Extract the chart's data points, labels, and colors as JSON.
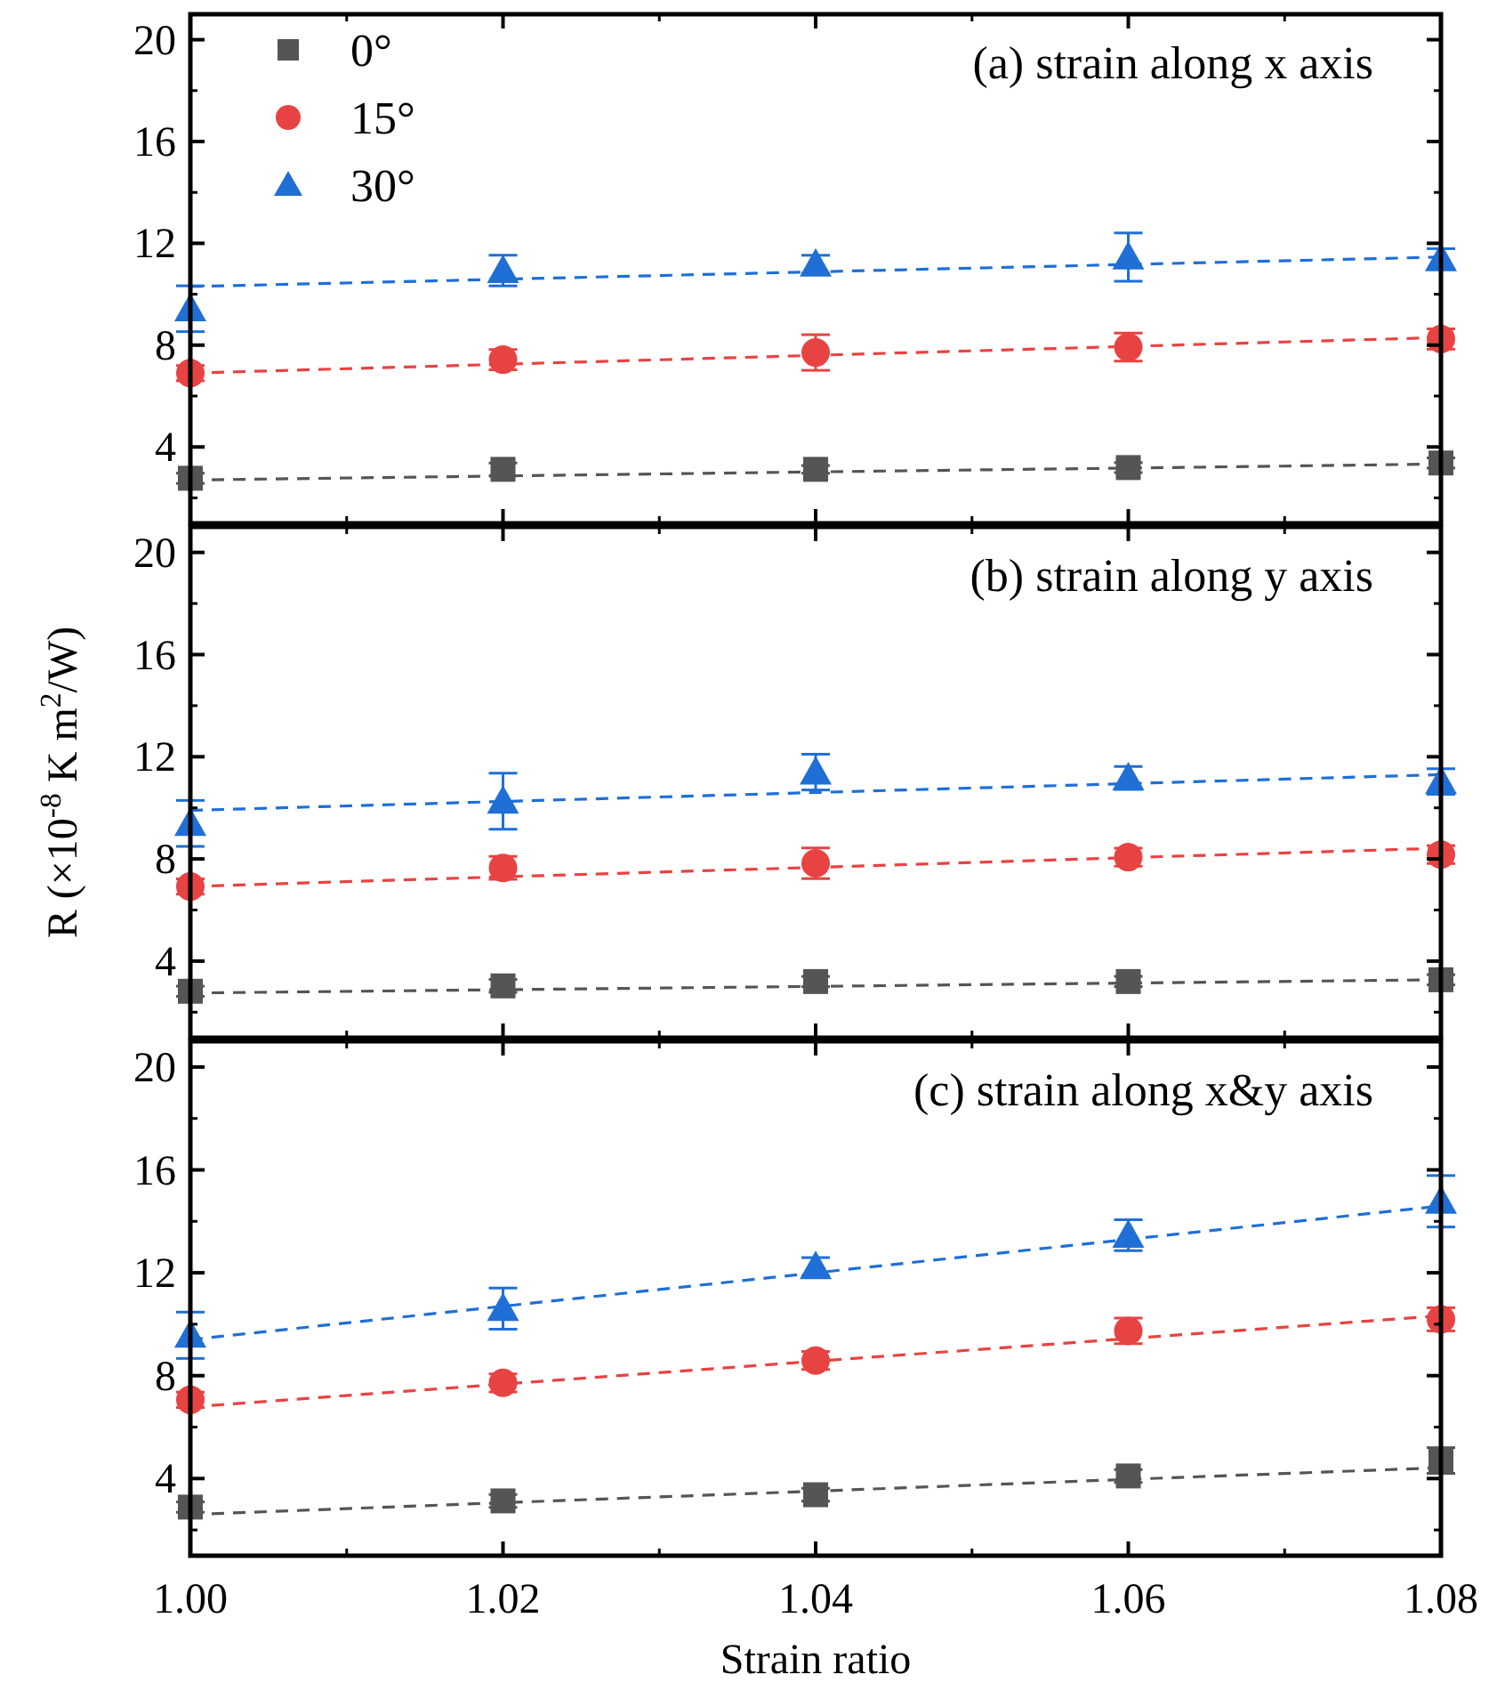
{
  "chart_data": [
    {
      "type": "scatter",
      "title": "(a) strain along x axis",
      "xlim": [
        1.0,
        1.08
      ],
      "xticks": [
        1.0,
        1.02,
        1.04,
        1.06,
        1.08
      ],
      "ylim": [
        1,
        21
      ],
      "yticks": [
        4,
        8,
        12,
        16,
        20
      ],
      "tick_labels": "y",
      "legend": "top left",
      "x": [
        1.0,
        1.02,
        1.04,
        1.06,
        1.08
      ],
      "series": [
        {
          "name": "0°",
          "color": "#555555",
          "marker": "square",
          "values": [
            2.77,
            3.12,
            3.12,
            3.19,
            3.37
          ],
          "errors": [
            0.2,
            0.25,
            0.15,
            0.2,
            0.2
          ]
        },
        {
          "name": "15°",
          "color": "#e84343",
          "marker": "circle",
          "values": [
            6.9,
            7.43,
            7.71,
            7.92,
            8.24
          ],
          "errors": [
            0.3,
            0.4,
            0.7,
            0.55,
            0.4
          ]
        },
        {
          "name": "30°",
          "color": "#1f6fd6",
          "marker": "triangle",
          "values": [
            9.43,
            10.93,
            11.18,
            11.46,
            11.39
          ],
          "errors": [
            0.9,
            0.6,
            0.35,
            0.95,
            0.4
          ]
        },
        {
          "type": "line",
          "color": "#555555",
          "line_style": "dashed",
          "values": [
            2.7,
            2.86,
            3.02,
            3.17,
            3.33
          ]
        },
        {
          "type": "line",
          "color": "#e84343",
          "line_style": "dashed",
          "values": [
            6.9,
            7.25,
            7.6,
            7.95,
            8.3
          ]
        },
        {
          "type": "line",
          "color": "#1f6fd6",
          "line_style": "dashed",
          "values": [
            10.3,
            10.59,
            10.88,
            11.17,
            11.46
          ]
        }
      ]
    },
    {
      "type": "scatter",
      "title": "(b) strain along y axis",
      "ylabel": "R (×10$^{-8}$ K m$^{2}$/W)",
      "xlim": [
        1.0,
        1.08
      ],
      "xticks": [
        1.0,
        1.02,
        1.04,
        1.06,
        1.08
      ],
      "ylim": [
        1,
        21
      ],
      "yticks": [
        4,
        8,
        12,
        16,
        20
      ],
      "tick_labels": "y",
      "x": [
        1.0,
        1.02,
        1.04,
        1.06,
        1.08
      ],
      "series": [
        {
          "color": "#555555",
          "marker": "square",
          "values": [
            2.82,
            3.03,
            3.2,
            3.2,
            3.27
          ],
          "errors": [
            0.2,
            0.25,
            0.2,
            0.2,
            0.2
          ]
        },
        {
          "color": "#e84343",
          "marker": "circle",
          "values": [
            6.92,
            7.65,
            7.83,
            8.07,
            8.17
          ],
          "errors": [
            0.3,
            0.45,
            0.6,
            0.35,
            0.35
          ]
        },
        {
          "color": "#1f6fd6",
          "marker": "triangle",
          "values": [
            9.39,
            10.26,
            11.4,
            11.17,
            11.03
          ],
          "errors": [
            0.9,
            1.1,
            0.7,
            0.45,
            0.5
          ]
        },
        {
          "type": "line",
          "color": "#555555",
          "line_style": "dashed",
          "values": [
            2.75,
            2.88,
            3.01,
            3.14,
            3.27
          ]
        },
        {
          "type": "line",
          "color": "#e84343",
          "line_style": "dashed",
          "values": [
            6.92,
            7.3,
            7.67,
            8.05,
            8.42
          ]
        },
        {
          "type": "line",
          "color": "#1f6fd6",
          "line_style": "dashed",
          "values": [
            9.9,
            10.25,
            10.6,
            10.95,
            11.3
          ]
        }
      ]
    },
    {
      "type": "scatter",
      "title": "(c) strain along x&y axis",
      "xlabel": "Strain ratio",
      "xlim": [
        1.0,
        1.08
      ],
      "xticks": [
        {
          "value": 1.0,
          "label": "1.00"
        },
        {
          "value": 1.02,
          "label": "1.02"
        },
        {
          "value": 1.04,
          "label": "1.04"
        },
        {
          "value": 1.06,
          "label": "1.06"
        },
        {
          "value": 1.08,
          "label": "1.08"
        }
      ],
      "ylim": [
        1,
        21
      ],
      "yticks": [
        4,
        8,
        12,
        16,
        20
      ],
      "x": [
        1.0,
        1.02,
        1.04,
        1.06,
        1.08
      ],
      "series": [
        {
          "color": "#555555",
          "marker": "square",
          "values": [
            2.89,
            3.13,
            3.37,
            4.1,
            4.7
          ],
          "errors": [
            0.2,
            0.25,
            0.25,
            0.25,
            0.5
          ]
        },
        {
          "color": "#e84343",
          "marker": "circle",
          "values": [
            7.06,
            7.72,
            8.59,
            9.74,
            10.19
          ],
          "errors": [
            0.3,
            0.35,
            0.35,
            0.5,
            0.45
          ]
        },
        {
          "color": "#1f6fd6",
          "marker": "triangle",
          "values": [
            9.57,
            10.61,
            12.24,
            13.46,
            14.78
          ],
          "errors": [
            0.9,
            0.8,
            0.35,
            0.6,
            1.0
          ]
        },
        {
          "type": "line",
          "color": "#555555",
          "line_style": "dashed",
          "values": [
            2.6,
            3.06,
            3.51,
            3.97,
            4.42
          ]
        },
        {
          "type": "line",
          "color": "#e84343",
          "line_style": "dashed",
          "values": [
            6.78,
            7.67,
            8.56,
            9.44,
            10.33
          ]
        },
        {
          "type": "line",
          "color": "#1f6fd6",
          "line_style": "dashed",
          "values": [
            9.4,
            10.7,
            12.0,
            13.3,
            14.6
          ]
        }
      ]
    }
  ]
}
